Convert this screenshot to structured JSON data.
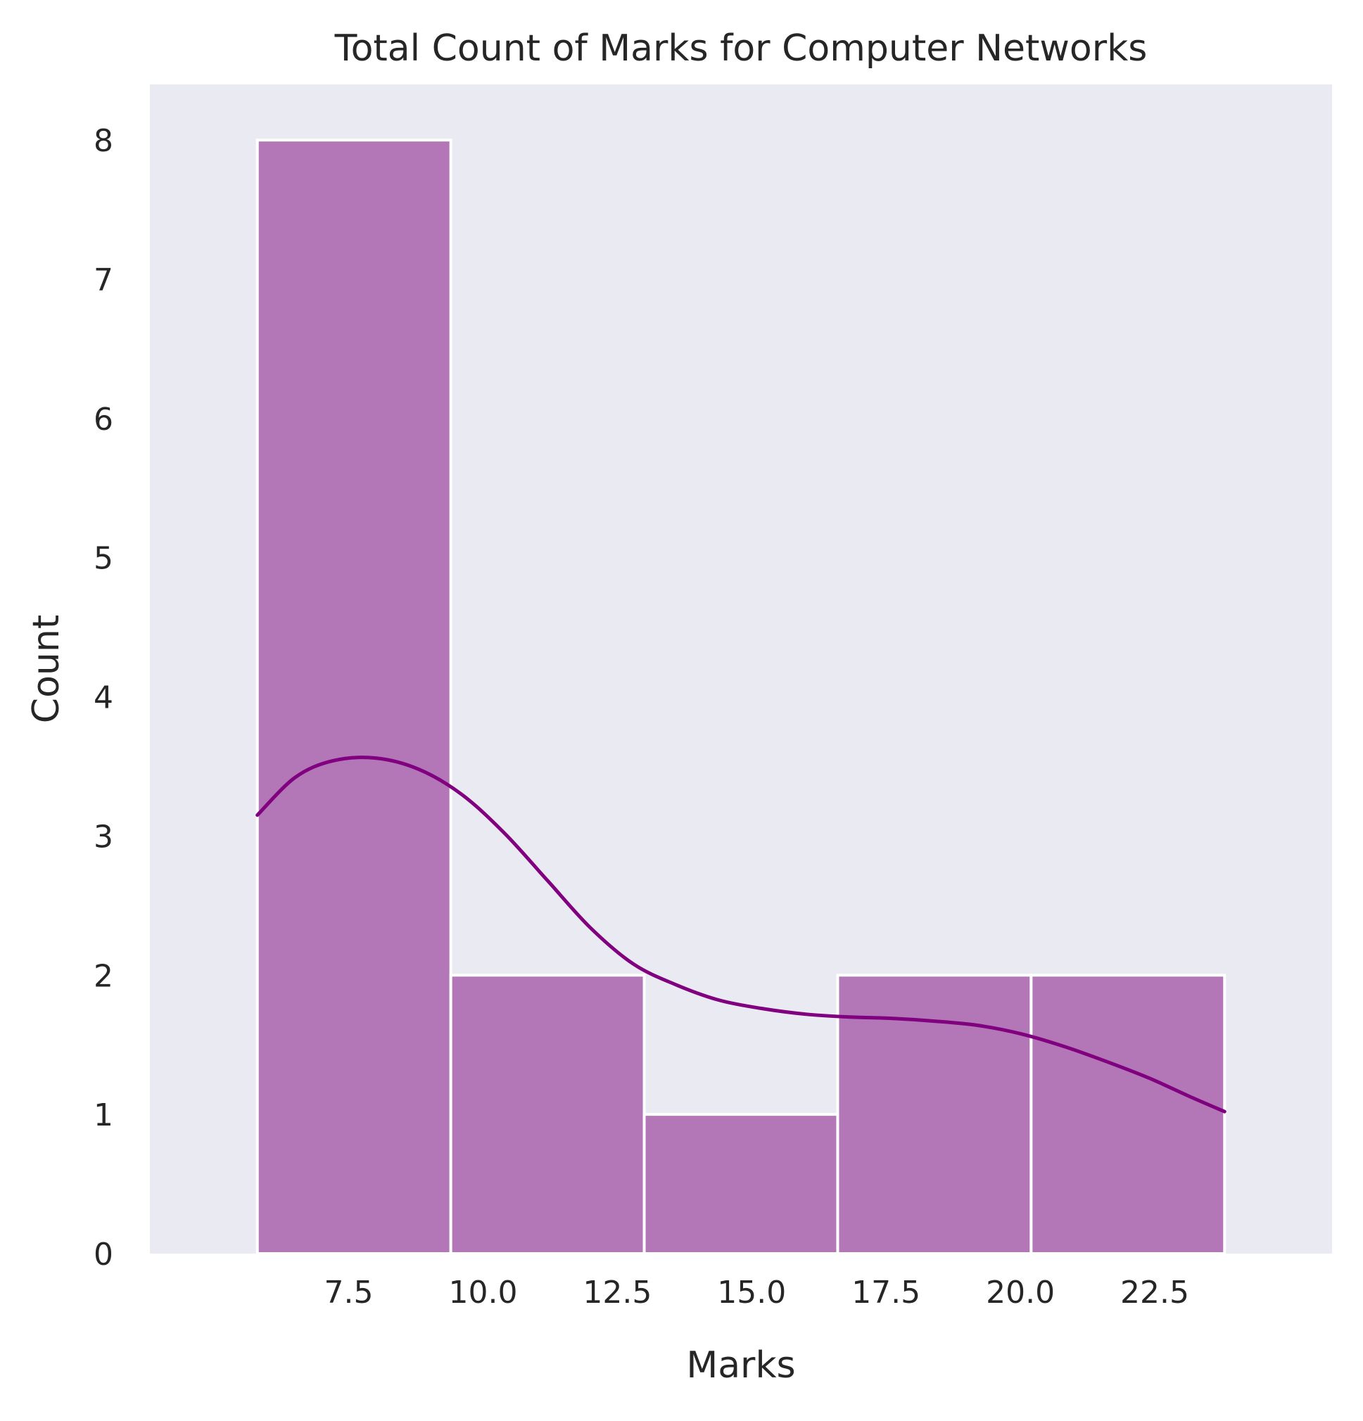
{
  "chart_data": {
    "type": "bar",
    "subtype": "histogram-with-kde",
    "title": "Total Count of Marks for Computer Networks",
    "xlabel": "Marks",
    "ylabel": "Count",
    "bins": [
      {
        "x0": 5.8,
        "x1": 9.4,
        "count": 8
      },
      {
        "x0": 9.4,
        "x1": 13.0,
        "count": 2
      },
      {
        "x0": 13.0,
        "x1": 16.6,
        "count": 1
      },
      {
        "x0": 16.6,
        "x1": 20.2,
        "count": 2
      },
      {
        "x0": 20.2,
        "x1": 23.8,
        "count": 2
      }
    ],
    "kde": {
      "name": "",
      "x": [
        5.8,
        6.5,
        7.2,
        8.0,
        8.8,
        9.6,
        10.4,
        11.2,
        12.0,
        12.8,
        13.6,
        14.4,
        15.2,
        16.0,
        16.8,
        17.6,
        18.4,
        19.2,
        20.0,
        20.8,
        21.6,
        22.4,
        23.2,
        23.8
      ],
      "y": [
        3.15,
        3.42,
        3.54,
        3.56,
        3.48,
        3.3,
        3.02,
        2.68,
        2.34,
        2.08,
        1.93,
        1.82,
        1.76,
        1.72,
        1.7,
        1.69,
        1.67,
        1.64,
        1.58,
        1.49,
        1.38,
        1.26,
        1.12,
        1.02
      ]
    },
    "xlim": [
      3.8,
      25.8
    ],
    "ylim": [
      0,
      8.4
    ],
    "xticks": [
      7.5,
      10.0,
      12.5,
      15.0,
      17.5,
      20.0,
      22.5
    ],
    "xtick_labels": [
      "7.5",
      "10.0",
      "12.5",
      "15.0",
      "17.5",
      "20.0",
      "22.5"
    ],
    "yticks": [
      0,
      1,
      2,
      3,
      4,
      5,
      6,
      7,
      8
    ],
    "ytick_labels": [
      "0",
      "1",
      "2",
      "3",
      "4",
      "5",
      "6",
      "7",
      "8"
    ],
    "grid": false,
    "colors": {
      "plot_background": "#eaeaf2",
      "bar_fill": "#b376b6",
      "bar_edge": "#ffffff",
      "kde_line": "#800080",
      "text": "#262626"
    }
  }
}
